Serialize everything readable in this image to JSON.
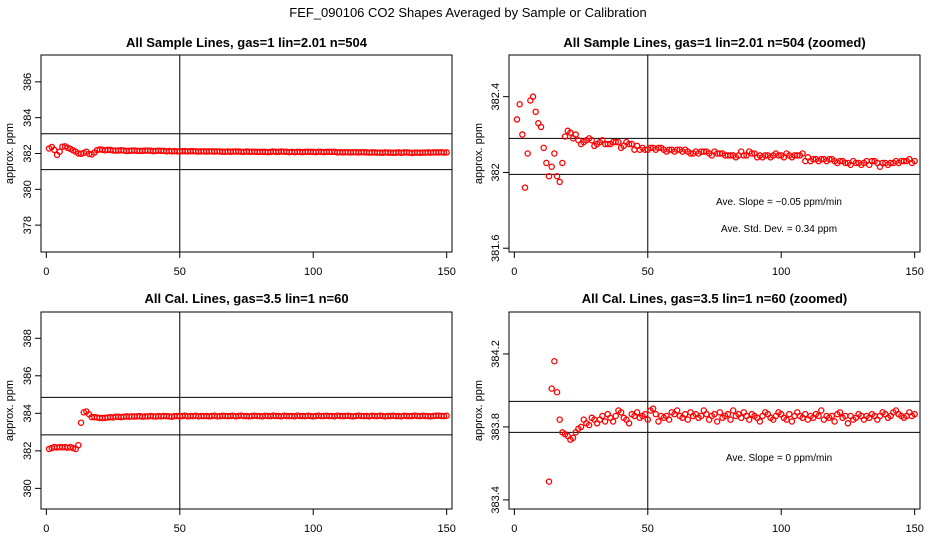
{
  "figure_title": "FEF_090106  CO2 Shapes Averaged by Sample or Calibration",
  "chart_data": [
    {
      "type": "scatter",
      "title": "All Sample Lines, gas=1 lin=2.01 n=504",
      "xlabel": "",
      "ylabel": "approx. ppm",
      "xlim": [
        -2,
        152
      ],
      "ylim": [
        376.5,
        387.5
      ],
      "xticks": [
        0,
        50,
        100,
        150
      ],
      "yticks": [
        378,
        380,
        382,
        384,
        386
      ],
      "hlines": [
        383.1,
        381.1
      ],
      "vline": 50,
      "color": "#ff0000",
      "x": [
        1,
        2,
        3,
        4,
        5,
        6,
        7,
        8,
        9,
        10,
        11,
        12,
        13,
        14,
        15,
        16,
        17,
        18,
        19,
        20,
        21,
        22,
        23,
        24,
        25,
        26,
        27,
        28,
        29,
        30,
        31,
        32,
        33,
        34,
        35,
        36,
        37,
        38,
        39,
        40,
        41,
        42,
        43,
        44,
        45,
        46,
        47,
        48,
        49,
        50,
        51,
        52,
        53,
        54,
        55,
        56,
        57,
        58,
        59,
        60,
        61,
        62,
        63,
        64,
        65,
        66,
        67,
        68,
        69,
        70,
        71,
        72,
        73,
        74,
        75,
        76,
        77,
        78,
        79,
        80,
        81,
        82,
        83,
        84,
        85,
        86,
        87,
        88,
        89,
        90,
        91,
        92,
        93,
        94,
        95,
        96,
        97,
        98,
        99,
        100,
        101,
        102,
        103,
        104,
        105,
        106,
        107,
        108,
        109,
        110,
        111,
        112,
        113,
        114,
        115,
        116,
        117,
        118,
        119,
        120,
        121,
        122,
        123,
        124,
        125,
        126,
        127,
        128,
        129,
        130,
        131,
        132,
        133,
        134,
        135,
        136,
        137,
        138,
        139,
        140,
        141,
        142,
        143,
        144,
        145,
        146,
        147,
        148,
        149,
        150
      ],
      "y": [
        382.28,
        382.36,
        382.2,
        381.92,
        382.1,
        382.38,
        382.4,
        382.32,
        382.26,
        382.18,
        382.1,
        382.0,
        381.98,
        382.03,
        382.1,
        381.98,
        381.95,
        382.05,
        382.19,
        382.22,
        382.21,
        382.18,
        382.2,
        382.2,
        382.17,
        382.16,
        382.17,
        382.18,
        382.17,
        382.14,
        382.15,
        382.16,
        382.17,
        382.15,
        382.15,
        382.15,
        382.16,
        382.16,
        382.16,
        382.13,
        382.14,
        382.16,
        382.15,
        382.15,
        382.12,
        382.14,
        382.12,
        382.13,
        382.12,
        382.12,
        382.13,
        382.13,
        382.12,
        382.13,
        382.13,
        382.12,
        382.11,
        382.12,
        382.12,
        382.11,
        382.12,
        382.12,
        382.11,
        382.12,
        382.11,
        382.1,
        382.1,
        382.11,
        382.1,
        382.11,
        382.11,
        382.11,
        382.1,
        382.09,
        382.11,
        382.1,
        382.1,
        382.1,
        382.09,
        382.09,
        382.09,
        382.09,
        382.08,
        382.09,
        382.11,
        382.09,
        382.09,
        382.11,
        382.1,
        382.1,
        382.08,
        382.09,
        382.08,
        382.09,
        382.09,
        382.08,
        382.09,
        382.1,
        382.09,
        382.09,
        382.08,
        382.1,
        382.09,
        382.08,
        382.09,
        382.09,
        382.09,
        382.1,
        382.06,
        382.08,
        382.06,
        382.07,
        382.07,
        382.06,
        382.07,
        382.07,
        382.06,
        382.07,
        382.07,
        382.06,
        382.05,
        382.06,
        382.06,
        382.05,
        382.05,
        382.04,
        382.06,
        382.05,
        382.05,
        382.04,
        382.05,
        382.06,
        382.04,
        382.06,
        382.06,
        382.05,
        382.03,
        382.05,
        382.05,
        382.04,
        382.05,
        382.05,
        382.06,
        382.05,
        382.06,
        382.06,
        382.06,
        382.07,
        382.05,
        382.06
      ],
      "annotations": []
    },
    {
      "type": "scatter",
      "title": "All Sample Lines, gas=1 lin=2.01 n=504 (zoomed)",
      "xlabel": "",
      "ylabel": "approx. ppm",
      "xlim": [
        -2,
        152
      ],
      "ylim": [
        381.58,
        382.62
      ],
      "xticks": [
        0,
        50,
        100,
        150
      ],
      "yticks": [
        381.6,
        382.0,
        382.4
      ],
      "hlines": [
        382.18,
        381.99
      ],
      "vline": 50,
      "color": "#ff0000",
      "x": [
        1,
        2,
        3,
        4,
        5,
        6,
        7,
        8,
        9,
        10,
        11,
        12,
        13,
        14,
        15,
        16,
        17,
        18,
        19,
        20,
        21,
        22,
        23,
        24,
        25,
        26,
        27,
        28,
        29,
        30,
        31,
        32,
        33,
        34,
        35,
        36,
        37,
        38,
        39,
        40,
        41,
        42,
        43,
        44,
        45,
        46,
        47,
        48,
        49,
        50,
        51,
        52,
        53,
        54,
        55,
        56,
        57,
        58,
        59,
        60,
        61,
        62,
        63,
        64,
        65,
        66,
        67,
        68,
        69,
        70,
        71,
        72,
        73,
        74,
        75,
        76,
        77,
        78,
        79,
        80,
        81,
        82,
        83,
        84,
        85,
        86,
        87,
        88,
        89,
        90,
        91,
        92,
        93,
        94,
        95,
        96,
        97,
        98,
        99,
        100,
        101,
        102,
        103,
        104,
        105,
        106,
        107,
        108,
        109,
        110,
        111,
        112,
        113,
        114,
        115,
        116,
        117,
        118,
        119,
        120,
        121,
        122,
        123,
        124,
        125,
        126,
        127,
        128,
        129,
        130,
        131,
        132,
        133,
        134,
        135,
        136,
        137,
        138,
        139,
        140,
        141,
        142,
        143,
        144,
        145,
        146,
        147,
        148,
        149,
        150
      ],
      "y": [
        382.28,
        382.36,
        382.2,
        381.92,
        382.1,
        382.38,
        382.4,
        382.32,
        382.26,
        382.24,
        382.13,
        382.05,
        381.98,
        382.03,
        382.1,
        381.98,
        381.95,
        382.05,
        382.19,
        382.22,
        382.21,
        382.18,
        382.2,
        382.17,
        382.15,
        382.16,
        382.17,
        382.18,
        382.17,
        382.14,
        382.15,
        382.16,
        382.17,
        382.15,
        382.15,
        382.15,
        382.16,
        382.16,
        382.16,
        382.13,
        382.14,
        382.16,
        382.15,
        382.15,
        382.12,
        382.14,
        382.12,
        382.13,
        382.12,
        382.12,
        382.13,
        382.13,
        382.12,
        382.13,
        382.13,
        382.12,
        382.11,
        382.12,
        382.12,
        382.11,
        382.12,
        382.12,
        382.11,
        382.12,
        382.11,
        382.1,
        382.1,
        382.11,
        382.1,
        382.11,
        382.11,
        382.11,
        382.1,
        382.09,
        382.11,
        382.1,
        382.1,
        382.1,
        382.09,
        382.09,
        382.09,
        382.09,
        382.08,
        382.09,
        382.11,
        382.09,
        382.09,
        382.11,
        382.1,
        382.1,
        382.08,
        382.09,
        382.08,
        382.09,
        382.09,
        382.08,
        382.09,
        382.1,
        382.09,
        382.09,
        382.08,
        382.1,
        382.09,
        382.08,
        382.09,
        382.09,
        382.09,
        382.1,
        382.06,
        382.08,
        382.06,
        382.07,
        382.07,
        382.06,
        382.07,
        382.07,
        382.06,
        382.07,
        382.07,
        382.06,
        382.05,
        382.06,
        382.06,
        382.05,
        382.05,
        382.04,
        382.06,
        382.05,
        382.05,
        382.04,
        382.05,
        382.06,
        382.04,
        382.06,
        382.06,
        382.05,
        382.03,
        382.05,
        382.05,
        382.04,
        382.05,
        382.05,
        382.06,
        382.05,
        382.06,
        382.06,
        382.06,
        382.07,
        382.05,
        382.06
      ],
      "annotations": [
        "Ave. Slope = −0.05  ppm/min",
        "Ave. Std. Dev. = 0.34  ppm"
      ]
    },
    {
      "type": "scatter",
      "title": "All Cal. Lines, gas=3.5 lin=1 n=60",
      "xlabel": "",
      "ylabel": "approx. ppm",
      "xlim": [
        -2,
        152
      ],
      "ylim": [
        378.9,
        389.4
      ],
      "xticks": [
        0,
        50,
        100,
        150
      ],
      "yticks": [
        380,
        382,
        384,
        386,
        388
      ],
      "hlines": [
        384.85,
        382.85
      ],
      "vline": 50,
      "color": "#ff0000",
      "x": [
        1,
        2,
        3,
        4,
        5,
        6,
        7,
        8,
        9,
        10,
        11,
        12,
        13,
        14,
        15,
        16,
        17,
        18,
        19,
        20,
        21,
        22,
        23,
        24,
        25,
        26,
        27,
        28,
        29,
        30,
        31,
        32,
        33,
        34,
        35,
        36,
        37,
        38,
        39,
        40,
        41,
        42,
        43,
        44,
        45,
        46,
        47,
        48,
        49,
        50,
        51,
        52,
        53,
        54,
        55,
        56,
        57,
        58,
        59,
        60,
        61,
        62,
        63,
        64,
        65,
        66,
        67,
        68,
        69,
        70,
        71,
        72,
        73,
        74,
        75,
        76,
        77,
        78,
        79,
        80,
        81,
        82,
        83,
        84,
        85,
        86,
        87,
        88,
        89,
        90,
        91,
        92,
        93,
        94,
        95,
        96,
        97,
        98,
        99,
        100,
        101,
        102,
        103,
        104,
        105,
        106,
        107,
        108,
        109,
        110,
        111,
        112,
        113,
        114,
        115,
        116,
        117,
        118,
        119,
        120,
        121,
        122,
        123,
        124,
        125,
        126,
        127,
        128,
        129,
        130,
        131,
        132,
        133,
        134,
        135,
        136,
        137,
        138,
        139,
        140,
        141,
        142,
        143,
        144,
        145,
        146,
        147,
        148,
        149,
        150
      ],
      "y": [
        382.1,
        382.15,
        382.2,
        382.18,
        382.2,
        382.19,
        382.2,
        382.17,
        382.2,
        382.15,
        382.1,
        382.3,
        383.5,
        384.05,
        384.1,
        383.95,
        383.8,
        383.8,
        383.78,
        383.75,
        383.75,
        383.76,
        383.78,
        383.8,
        383.78,
        383.82,
        383.82,
        383.8,
        383.82,
        383.84,
        383.82,
        383.84,
        383.83,
        383.84,
        383.85,
        383.82,
        383.84,
        383.83,
        383.86,
        383.84,
        383.83,
        383.85,
        383.84,
        383.86,
        383.85,
        383.84,
        383.82,
        383.85,
        383.86,
        383.84,
        383.86,
        383.88,
        383.84,
        383.86,
        383.85,
        383.87,
        383.84,
        383.86,
        383.85,
        383.86,
        383.84,
        383.86,
        383.88,
        383.84,
        383.85,
        383.87,
        383.86,
        383.85,
        383.86,
        383.87,
        383.84,
        383.86,
        383.88,
        383.85,
        383.86,
        383.84,
        383.86,
        383.87,
        383.86,
        383.85,
        383.84,
        383.87,
        383.86,
        383.85,
        383.88,
        383.86,
        383.86,
        383.84,
        383.87,
        383.86,
        383.85,
        383.86,
        383.84,
        383.88,
        383.86,
        383.86,
        383.85,
        383.87,
        383.86,
        383.84,
        383.86,
        383.88,
        383.85,
        383.86,
        383.87,
        383.85,
        383.86,
        383.84,
        383.88,
        383.86,
        383.85,
        383.86,
        383.87,
        383.85,
        383.84,
        383.86,
        383.88,
        383.86,
        383.85,
        383.86,
        383.84,
        383.87,
        383.86,
        383.85,
        383.87,
        383.86,
        383.84,
        383.86,
        383.86,
        383.87,
        383.85,
        383.86,
        383.84,
        383.87,
        383.86,
        383.85,
        383.86,
        383.88,
        383.86,
        383.85,
        383.87,
        383.86,
        383.85,
        383.84,
        383.86,
        383.87,
        383.88,
        383.86,
        383.85,
        383.87
      ],
      "annotations": []
    },
    {
      "type": "scatter",
      "title": "All Cal. Lines, gas=3.5 lin=1 n=60 (zoomed)",
      "xlabel": "",
      "ylabel": "approx. ppm",
      "xlim": [
        -2,
        152
      ],
      "ylim": [
        383.35,
        384.43
      ],
      "xticks": [
        0,
        50,
        100,
        150
      ],
      "yticks": [
        383.4,
        383.8,
        384.2
      ],
      "hlines": [
        383.94,
        383.77
      ],
      "vline": 50,
      "color": "#ff0000",
      "x": [
        13,
        14,
        15,
        16,
        17,
        18,
        19,
        20,
        21,
        22,
        23,
        24,
        25,
        26,
        27,
        28,
        29,
        30,
        31,
        32,
        33,
        34,
        35,
        36,
        37,
        38,
        39,
        40,
        41,
        42,
        43,
        44,
        45,
        46,
        47,
        48,
        49,
        50,
        51,
        52,
        53,
        54,
        55,
        56,
        57,
        58,
        59,
        60,
        61,
        62,
        63,
        64,
        65,
        66,
        67,
        68,
        69,
        70,
        71,
        72,
        73,
        74,
        75,
        76,
        77,
        78,
        79,
        80,
        81,
        82,
        83,
        84,
        85,
        86,
        87,
        88,
        89,
        90,
        91,
        92,
        93,
        94,
        95,
        96,
        97,
        98,
        99,
        100,
        101,
        102,
        103,
        104,
        105,
        106,
        107,
        108,
        109,
        110,
        111,
        112,
        113,
        114,
        115,
        116,
        117,
        118,
        119,
        120,
        121,
        122,
        123,
        124,
        125,
        126,
        127,
        128,
        129,
        130,
        131,
        132,
        133,
        134,
        135,
        136,
        137,
        138,
        139,
        140,
        141,
        142,
        143,
        144,
        145,
        146,
        147,
        148,
        149,
        150
      ],
      "y": [
        383.5,
        384.01,
        384.16,
        383.99,
        383.84,
        383.77,
        383.76,
        383.75,
        383.73,
        383.74,
        383.77,
        383.79,
        383.8,
        383.84,
        383.82,
        383.81,
        383.85,
        383.84,
        383.82,
        383.84,
        383.86,
        383.83,
        383.87,
        383.85,
        383.83,
        383.86,
        383.89,
        383.88,
        383.85,
        383.84,
        383.82,
        383.87,
        383.86,
        383.88,
        383.85,
        383.86,
        383.87,
        383.84,
        383.89,
        383.9,
        383.87,
        383.83,
        383.86,
        383.85,
        383.86,
        383.84,
        383.88,
        383.87,
        383.89,
        383.86,
        383.85,
        383.87,
        383.84,
        383.88,
        383.86,
        383.87,
        383.85,
        383.86,
        383.89,
        383.87,
        383.84,
        383.86,
        383.87,
        383.83,
        383.88,
        383.85,
        383.86,
        383.87,
        383.84,
        383.89,
        383.86,
        383.87,
        383.85,
        383.88,
        383.86,
        383.84,
        383.87,
        383.86,
        383.85,
        383.83,
        383.86,
        383.88,
        383.87,
        383.85,
        383.84,
        383.86,
        383.88,
        383.87,
        383.85,
        383.84,
        383.87,
        383.83,
        383.86,
        383.88,
        383.86,
        383.85,
        383.87,
        383.84,
        383.86,
        383.85,
        383.87,
        383.86,
        383.89,
        383.84,
        383.86,
        383.85,
        383.86,
        383.83,
        383.87,
        383.88,
        383.85,
        383.86,
        383.82,
        383.86,
        383.84,
        383.85,
        383.87,
        383.86,
        383.84,
        383.86,
        383.85,
        383.87,
        383.86,
        383.84,
        383.86,
        383.88,
        383.87,
        383.85,
        383.86,
        383.88,
        383.89,
        383.87,
        383.86,
        383.85,
        383.86,
        383.88,
        383.86,
        383.87
      ],
      "annotations": [
        "Ave. Slope = 0  ppm/min"
      ]
    }
  ]
}
